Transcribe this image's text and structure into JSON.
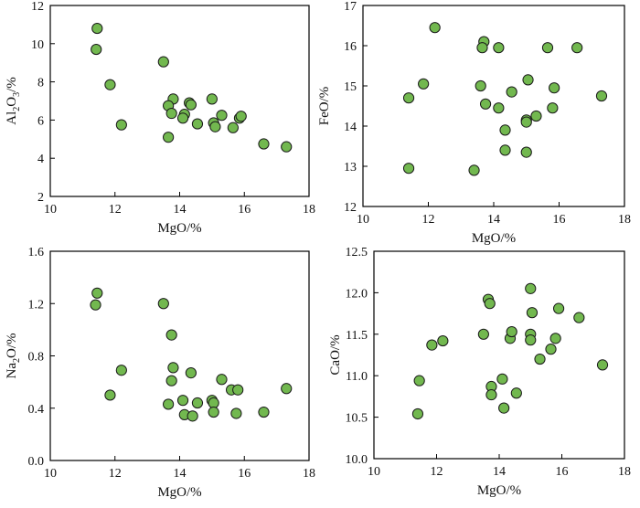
{
  "colors": {
    "marker_fill": "#72b84f",
    "marker_stroke": "#1a1a1a",
    "axis": "#000000"
  },
  "chart_data": [
    {
      "id": "al2o3",
      "type": "scatter",
      "ylabel_parts": [
        "Al",
        "2",
        "O",
        "3",
        "/%"
      ],
      "xlabel": "MgO/%",
      "xlim": [
        10,
        18
      ],
      "ylim": [
        2,
        12
      ],
      "xticks": [
        "10",
        "12",
        "14",
        "16",
        "18"
      ],
      "yticks": [
        "2",
        "4",
        "6",
        "8",
        "10",
        "12"
      ],
      "points": [
        {
          "x": 11.45,
          "y": 10.8
        },
        {
          "x": 11.42,
          "y": 9.7
        },
        {
          "x": 11.85,
          "y": 7.85
        },
        {
          "x": 12.2,
          "y": 5.75
        },
        {
          "x": 13.5,
          "y": 9.05
        },
        {
          "x": 13.8,
          "y": 7.1
        },
        {
          "x": 13.65,
          "y": 6.75
        },
        {
          "x": 13.75,
          "y": 6.35
        },
        {
          "x": 13.65,
          "y": 5.1
        },
        {
          "x": 14.15,
          "y": 6.3
        },
        {
          "x": 14.1,
          "y": 6.1
        },
        {
          "x": 14.3,
          "y": 6.9
        },
        {
          "x": 14.35,
          "y": 6.8
        },
        {
          "x": 14.55,
          "y": 5.8
        },
        {
          "x": 15.0,
          "y": 7.1
        },
        {
          "x": 15.05,
          "y": 5.85
        },
        {
          "x": 15.1,
          "y": 5.65
        },
        {
          "x": 15.3,
          "y": 6.25
        },
        {
          "x": 15.65,
          "y": 5.6
        },
        {
          "x": 15.85,
          "y": 6.1
        },
        {
          "x": 15.9,
          "y": 6.2
        },
        {
          "x": 16.6,
          "y": 4.75
        },
        {
          "x": 17.3,
          "y": 4.6
        }
      ]
    },
    {
      "id": "feo",
      "type": "scatter",
      "ylabel_parts": [
        "FeO/%"
      ],
      "xlabel": "MgO/%",
      "xlim": [
        10,
        18
      ],
      "ylim": [
        12,
        17
      ],
      "xticks": [
        "10",
        "12",
        "14",
        "16",
        "18"
      ],
      "yticks": [
        "12",
        "13",
        "14",
        "15",
        "16",
        "17"
      ],
      "points": [
        {
          "x": 11.4,
          "y": 14.7
        },
        {
          "x": 11.4,
          "y": 12.95
        },
        {
          "x": 11.85,
          "y": 15.05
        },
        {
          "x": 12.2,
          "y": 16.45
        },
        {
          "x": 13.4,
          "y": 12.9
        },
        {
          "x": 13.6,
          "y": 15.0
        },
        {
          "x": 13.7,
          "y": 16.1
        },
        {
          "x": 13.65,
          "y": 15.95
        },
        {
          "x": 13.75,
          "y": 14.55
        },
        {
          "x": 14.15,
          "y": 15.95
        },
        {
          "x": 14.15,
          "y": 14.45
        },
        {
          "x": 14.35,
          "y": 13.4
        },
        {
          "x": 14.35,
          "y": 13.9
        },
        {
          "x": 14.55,
          "y": 14.85
        },
        {
          "x": 15.0,
          "y": 14.15
        },
        {
          "x": 15.05,
          "y": 15.15
        },
        {
          "x": 15.0,
          "y": 14.1
        },
        {
          "x": 15.0,
          "y": 13.35
        },
        {
          "x": 15.3,
          "y": 14.25
        },
        {
          "x": 15.65,
          "y": 15.95
        },
        {
          "x": 15.85,
          "y": 14.95
        },
        {
          "x": 15.8,
          "y": 14.45
        },
        {
          "x": 16.55,
          "y": 15.95
        },
        {
          "x": 17.3,
          "y": 14.75
        }
      ]
    },
    {
      "id": "na2o",
      "type": "scatter",
      "ylabel_parts": [
        "Na",
        "2",
        "O/%"
      ],
      "xlabel": "MgO/%",
      "xlim": [
        10,
        18
      ],
      "ylim": [
        0,
        1.6
      ],
      "xticks": [
        "10",
        "12",
        "14",
        "16",
        "18"
      ],
      "yticks": [
        "0.0",
        "0.4",
        "0.8",
        "1.2",
        "1.6"
      ],
      "points": [
        {
          "x": 11.45,
          "y": 1.28
        },
        {
          "x": 11.4,
          "y": 1.19
        },
        {
          "x": 11.85,
          "y": 0.5
        },
        {
          "x": 12.2,
          "y": 0.69
        },
        {
          "x": 13.5,
          "y": 1.2
        },
        {
          "x": 13.75,
          "y": 0.96
        },
        {
          "x": 13.8,
          "y": 0.71
        },
        {
          "x": 13.75,
          "y": 0.61
        },
        {
          "x": 13.65,
          "y": 0.43
        },
        {
          "x": 14.1,
          "y": 0.46
        },
        {
          "x": 14.15,
          "y": 0.35
        },
        {
          "x": 14.35,
          "y": 0.67
        },
        {
          "x": 14.4,
          "y": 0.34
        },
        {
          "x": 14.55,
          "y": 0.44
        },
        {
          "x": 15.0,
          "y": 0.46
        },
        {
          "x": 15.05,
          "y": 0.44
        },
        {
          "x": 15.05,
          "y": 0.37
        },
        {
          "x": 15.3,
          "y": 0.62
        },
        {
          "x": 15.6,
          "y": 0.54
        },
        {
          "x": 15.8,
          "y": 0.54
        },
        {
          "x": 15.75,
          "y": 0.36
        },
        {
          "x": 16.6,
          "y": 0.37
        },
        {
          "x": 17.3,
          "y": 0.55
        }
      ]
    },
    {
      "id": "cao",
      "type": "scatter",
      "ylabel_parts": [
        "CaO/%"
      ],
      "xlabel": "MgO/%",
      "xlim": [
        10,
        18
      ],
      "ylim": [
        10.0,
        12.5
      ],
      "xticks": [
        "10",
        "12",
        "14",
        "16",
        "18"
      ],
      "yticks": [
        "10.0",
        "10.5",
        "11.0",
        "11.5",
        "12.0",
        "12.5"
      ],
      "points": [
        {
          "x": 11.45,
          "y": 10.94
        },
        {
          "x": 11.4,
          "y": 10.54
        },
        {
          "x": 11.85,
          "y": 11.37
        },
        {
          "x": 12.2,
          "y": 11.42
        },
        {
          "x": 13.5,
          "y": 11.5
        },
        {
          "x": 13.65,
          "y": 11.92
        },
        {
          "x": 13.7,
          "y": 11.87
        },
        {
          "x": 13.75,
          "y": 10.87
        },
        {
          "x": 13.75,
          "y": 10.77
        },
        {
          "x": 14.1,
          "y": 10.96
        },
        {
          "x": 14.15,
          "y": 10.61
        },
        {
          "x": 14.35,
          "y": 11.45
        },
        {
          "x": 14.4,
          "y": 11.53
        },
        {
          "x": 14.55,
          "y": 10.79
        },
        {
          "x": 15.0,
          "y": 12.05
        },
        {
          "x": 15.05,
          "y": 11.76
        },
        {
          "x": 15.0,
          "y": 11.5
        },
        {
          "x": 15.0,
          "y": 11.43
        },
        {
          "x": 15.3,
          "y": 11.2
        },
        {
          "x": 15.65,
          "y": 11.32
        },
        {
          "x": 15.8,
          "y": 11.45
        },
        {
          "x": 15.9,
          "y": 11.81
        },
        {
          "x": 16.55,
          "y": 11.7
        },
        {
          "x": 17.3,
          "y": 11.13
        }
      ]
    }
  ]
}
